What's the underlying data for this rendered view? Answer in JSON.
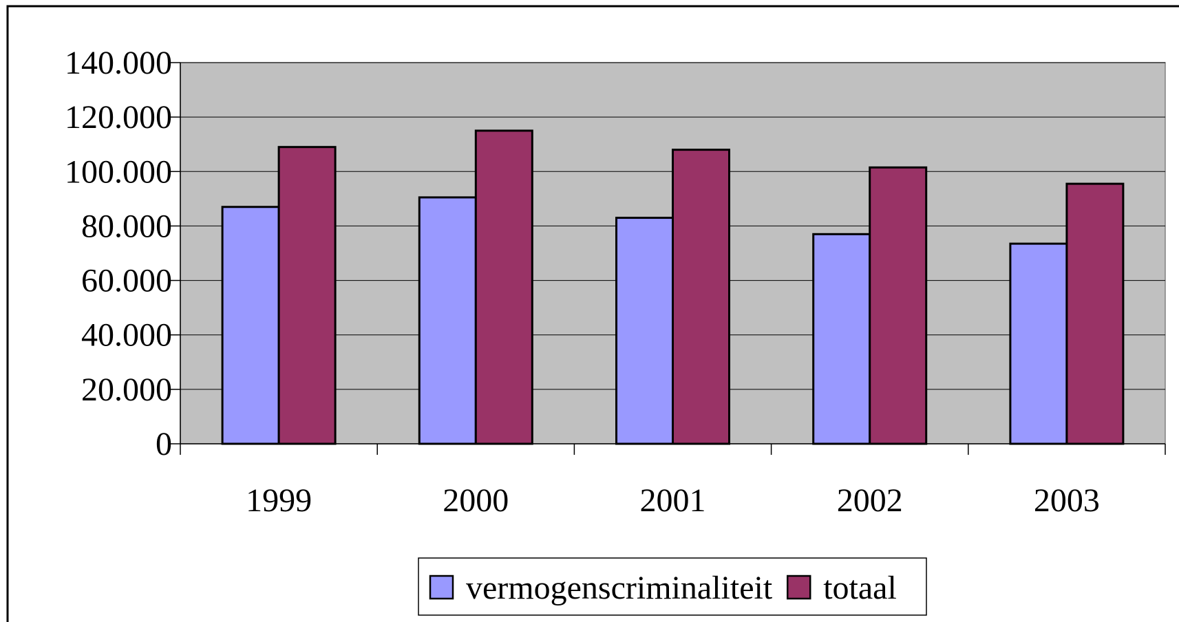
{
  "chart_data": {
    "type": "bar",
    "categories": [
      "1999",
      "2000",
      "2001",
      "2002",
      "2003"
    ],
    "series": [
      {
        "name": "vermogenscriminaliteit",
        "color": "#9999ff",
        "values": [
          87000,
          90500,
          83000,
          77000,
          73500
        ]
      },
      {
        "name": "totaal",
        "color": "#993366",
        "values": [
          109000,
          115000,
          108000,
          101500,
          95500
        ]
      }
    ],
    "ylim": [
      0,
      140000
    ],
    "yticks": [
      0,
      {
        "value": 20000,
        "label": "20.000"
      },
      {
        "value": 40000,
        "label": "40.000"
      },
      {
        "value": 60000,
        "label": "60.000"
      },
      {
        "value": 80000,
        "label": "80.000"
      },
      {
        "value": 100000,
        "label": "100.000"
      },
      {
        "value": 120000,
        "label": "120.000"
      },
      {
        "value": 140000,
        "label": "140.000"
      }
    ],
    "grid": true,
    "legend": "bottom"
  }
}
